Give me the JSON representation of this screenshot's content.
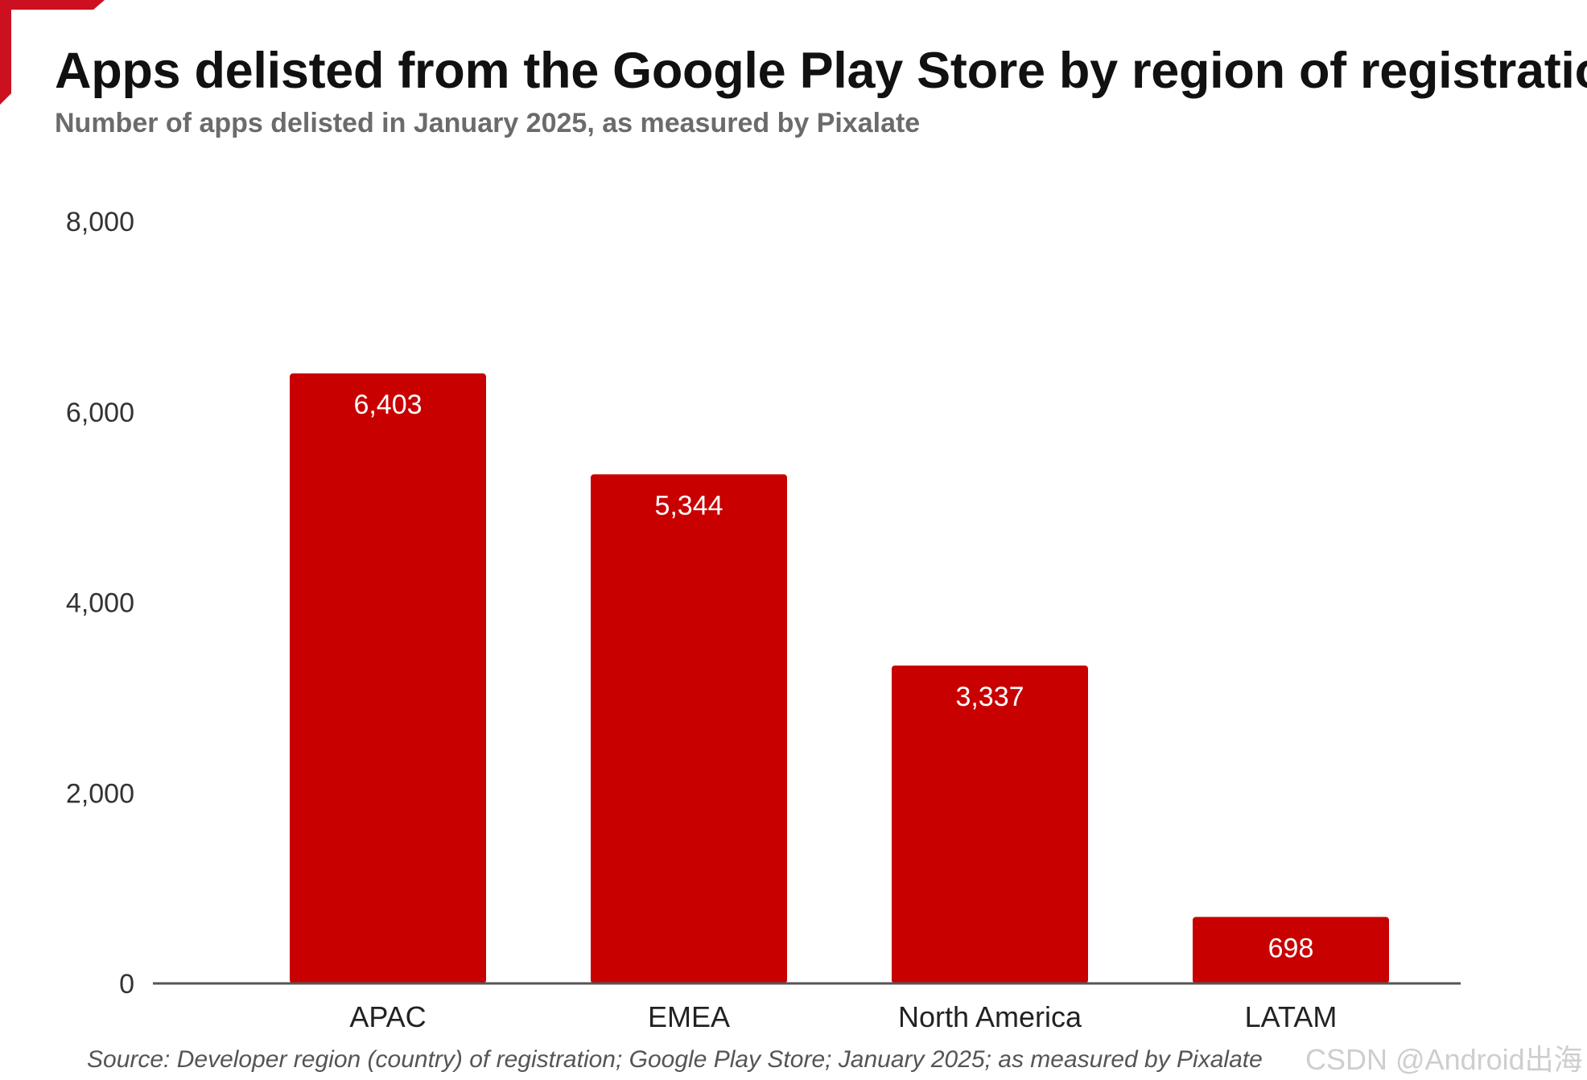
{
  "colors": {
    "bar": "#c80000",
    "accent": "#cc1020",
    "axis": "#555555",
    "tick_text": "#333333",
    "bar_label": "#ffffff"
  },
  "title": "Apps delisted from the Google Play Store by region of registration",
  "subtitle": "Number of apps delisted in January 2025, as measured by Pixalate",
  "source": "Source: Developer region (country) of registration; Google Play Store; January 2025; as measured by Pixalate",
  "watermark": "CSDN @Android出海",
  "chart_data": {
    "type": "bar",
    "title": "Apps delisted from the Google Play Store by region of registration",
    "subtitle": "Number of apps delisted in January 2025, as measured by Pixalate",
    "categories": [
      "APAC",
      "EMEA",
      "North America",
      "LATAM"
    ],
    "values": [
      6403,
      5344,
      3337,
      698
    ],
    "value_labels": [
      "6,403",
      "5,344",
      "3,337",
      "698"
    ],
    "yticks": [
      0,
      2000,
      4000,
      6000,
      8000
    ],
    "ytick_labels": [
      "0",
      "2,000",
      "4,000",
      "6,000",
      "8,000"
    ],
    "ylim": [
      0,
      8000
    ],
    "xlabel": "",
    "ylabel": "",
    "grid": false,
    "legend": "none"
  }
}
